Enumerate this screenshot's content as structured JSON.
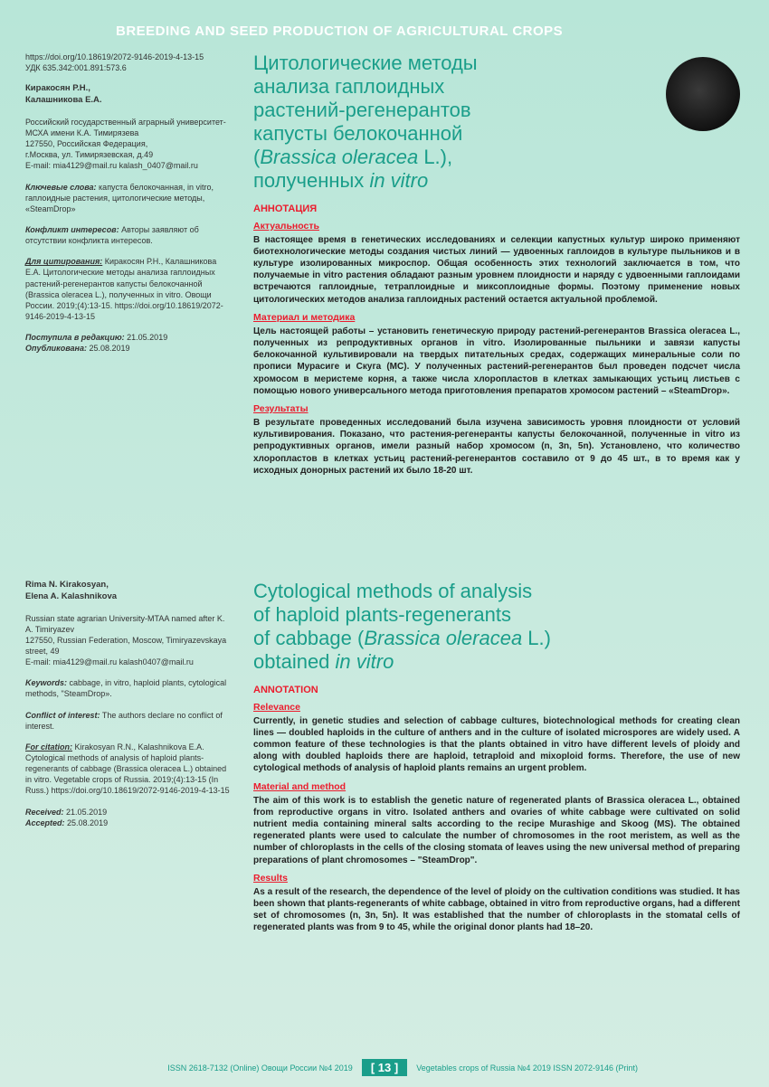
{
  "header": {
    "section_title": "BREEDING AND SEED PRODUCTION OF AGRICULTURAL CROPS"
  },
  "ru": {
    "sidebar": {
      "doi": "https://doi.org/10.18619/2072-9146-2019-4-13-15",
      "udk": "УДК 635.342:001.891:573.6",
      "authors": "Киракосян Р.Н.,\nКалашникова Е.А.",
      "affiliation": "Российский государственный аграрный университет-МСХА имени К.А. Тимирязева\n127550, Российская Федерация,\nг.Москва, ул. Тимирязевская, д.49\nE-mail: mia4129@mail.ru  kalash_0407@mail.ru",
      "keywords_label": "Ключевые слова:",
      "keywords": "капуста белокочанная, in vitro, гаплоидные растения, цитологические методы, «SteamDrop»",
      "conflict_label": "Конфликт интересов:",
      "conflict": "Авторы заявляют об отсутствии конфликта интересов.",
      "citation_label": "Для цитирования:",
      "citation": "Киракосян Р.Н., Калашникова Е.А. Цитологические методы анализа гаплоидных растений-регенерантов капусты белокочанной (Brassica oleracea L.), полученных in vitro. Овощи России. 2019;(4):13-15. https://doi.org/10.18619/2072-9146-2019-4-13-15",
      "received_label": "Поступила в редакцию:",
      "received": "21.05.2019",
      "published_label": "Опубликована:",
      "published": "25.08.2019"
    },
    "title_line1": "Цитологические методы",
    "title_line2": "анализа гаплоидных",
    "title_line3": "растений-регенерантов",
    "title_line4": "капусты белокочанной",
    "title_line5": "(",
    "title_italic1": "Brassica oleracea",
    "title_line5b": " L.),",
    "title_line6": "полученных ",
    "title_italic2": "in vitro",
    "annotation": "АННОТАЦИЯ",
    "relevance_h": "Актуальность",
    "relevance": "В настоящее время в генетических исследованиях и селекции капустных культур широко применяют биотехнологические методы создания чистых линий — удвоенных гаплоидов в культуре пыльников и в культуре изолированных микроспор. Общая особенность этих технологий заключается в том, что получаемые in vitro растения обладают разным уровнем плоидности и наряду с удвоенными гаплоидами встречаются гаплоидные, тетраплоидные и миксоплоидные формы. Поэтому применение новых цитологических методов анализа гаплоидных растений остается актуальной проблемой.",
    "material_h": "Материал и методика",
    "material": "Цель настоящей работы – установить генетическую природу растений-регенерантов Brassica oleracea L., полученных из репродуктивных органов in vitro. Изолированные пыльники и завязи капусты белокочанной культивировали на твердых питательных средах, содержащих минеральные соли по прописи Мурасиге и Скуга (МС). У полученных растений-регенерантов был проведен подсчет числа хромосом в меристеме корня, а также числа хлоропластов в клетках замыкающих устьиц листьев с помощью нового универсального метода приготовления препаратов хромосом растений – «SteamDrop».",
    "results_h": "Результаты",
    "results": "В результате проведенных исследований была изучена зависимость уровня плоидности от условий культивирования. Показано, что растения-регенеранты капусты белокочанной, полученные in vitro из репродуктивных органов, имели разный набор хромосом (n, 3n, 5n). Установлено, что количество хлоропластов в клетках устьиц растений-регенерантов составило от 9 до 45 шт., в то время как у исходных донорных растений их было 18-20 шт."
  },
  "en": {
    "sidebar": {
      "authors": "Rima N. Kirakosyan,\nElena A. Kalashnikova",
      "affiliation": "Russian state agrarian University-MTAA named after K. A. Timiryazev\n127550, Russian Federation, Moscow, Timiryazevskaya street, 49\nE-mail: mia4129@mail.ru  kalash0407@mail.ru",
      "keywords_label": "Keywords:",
      "keywords": "cabbage, in vitro, haploid plants, cytological methods, \"SteamDrop».",
      "conflict_label": "Conflict of interest:",
      "conflict": "The authors declare no conflict of interest.",
      "citation_label": "For citation:",
      "citation": "Kirakosyan R.N., Kalashnikova E.A. Cytological methods of analysis of haploid plants-regenerants of cabbage (Brassica oleracea L.) obtained in vitro. Vegetable crops of Russia. 2019;(4):13-15 (In Russ.) https://doi.org/10.18619/2072-9146-2019-4-13-15",
      "received_label": "Received:",
      "received": "21.05.2019",
      "accepted_label": "Accepted:",
      "accepted": "25.08.2019"
    },
    "title_line1": "Cytological methods of analysis",
    "title_line2": "of haploid plants-regenerants",
    "title_line3": "of cabbage (",
    "title_italic1": "Brassica oleracea",
    "title_line3b": " L.)",
    "title_line4": "obtained ",
    "title_italic2": "in vitro",
    "annotation": "ANNOTATION",
    "relevance_h": "Relevance",
    "relevance": "Currently, in genetic studies and selection of cabbage cultures, biotechnological methods for creating clean lines — doubled haploids in the culture of anthers and in the culture of isolated microspores are widely used. A common feature of these technologies is that the plants obtained in vitro have different levels of ploidy and along with doubled haploids there are haploid, tetraploid and mixoploid forms. Therefore, the use of new cytological methods of analysis of haploid plants remains an urgent problem.",
    "material_h": "Material and method",
    "material": "The aim of this work is to establish the genetic nature of regenerated plants of Brassica oleracea L., obtained from reproductive organs in vitro. Isolated anthers and ovaries of white cabbage were cultivated on solid nutrient media containing mineral salts according to the recipe Murashige and Skoog (MS). The obtained regenerated plants were used to calculate the number of chromosomes in the root meristem, as well as the number of chloroplasts in the cells of the closing stomata of leaves using the new universal method of preparing preparations of plant chromosomes – \"SteamDrop\".",
    "results_h": "Results",
    "results": "As a result of the research, the dependence of the level of ploidy on the cultivation conditions was studied. It has been shown that plants-regenerants of white cabbage, obtained in vitro from reproductive organs, had a different set of chromosomes (n, 3n, 5n). It was established that the number of chloroplasts in the stomatal cells of regenerated plants was from 9 to 45, while the original donor plants had 18–20."
  },
  "footer": {
    "left": "ISSN 2618-7132 (Online)    Овощи России №4  2019",
    "page": "13",
    "right": "Vegetables crops of Russia №4  2019   ISSN 2072-9146 (Print)"
  },
  "colors": {
    "teal": "#1a9e8a",
    "red": "#eb1c2d",
    "bg_top": "#b8e6d8",
    "bg_bottom": "#d4ede3"
  }
}
